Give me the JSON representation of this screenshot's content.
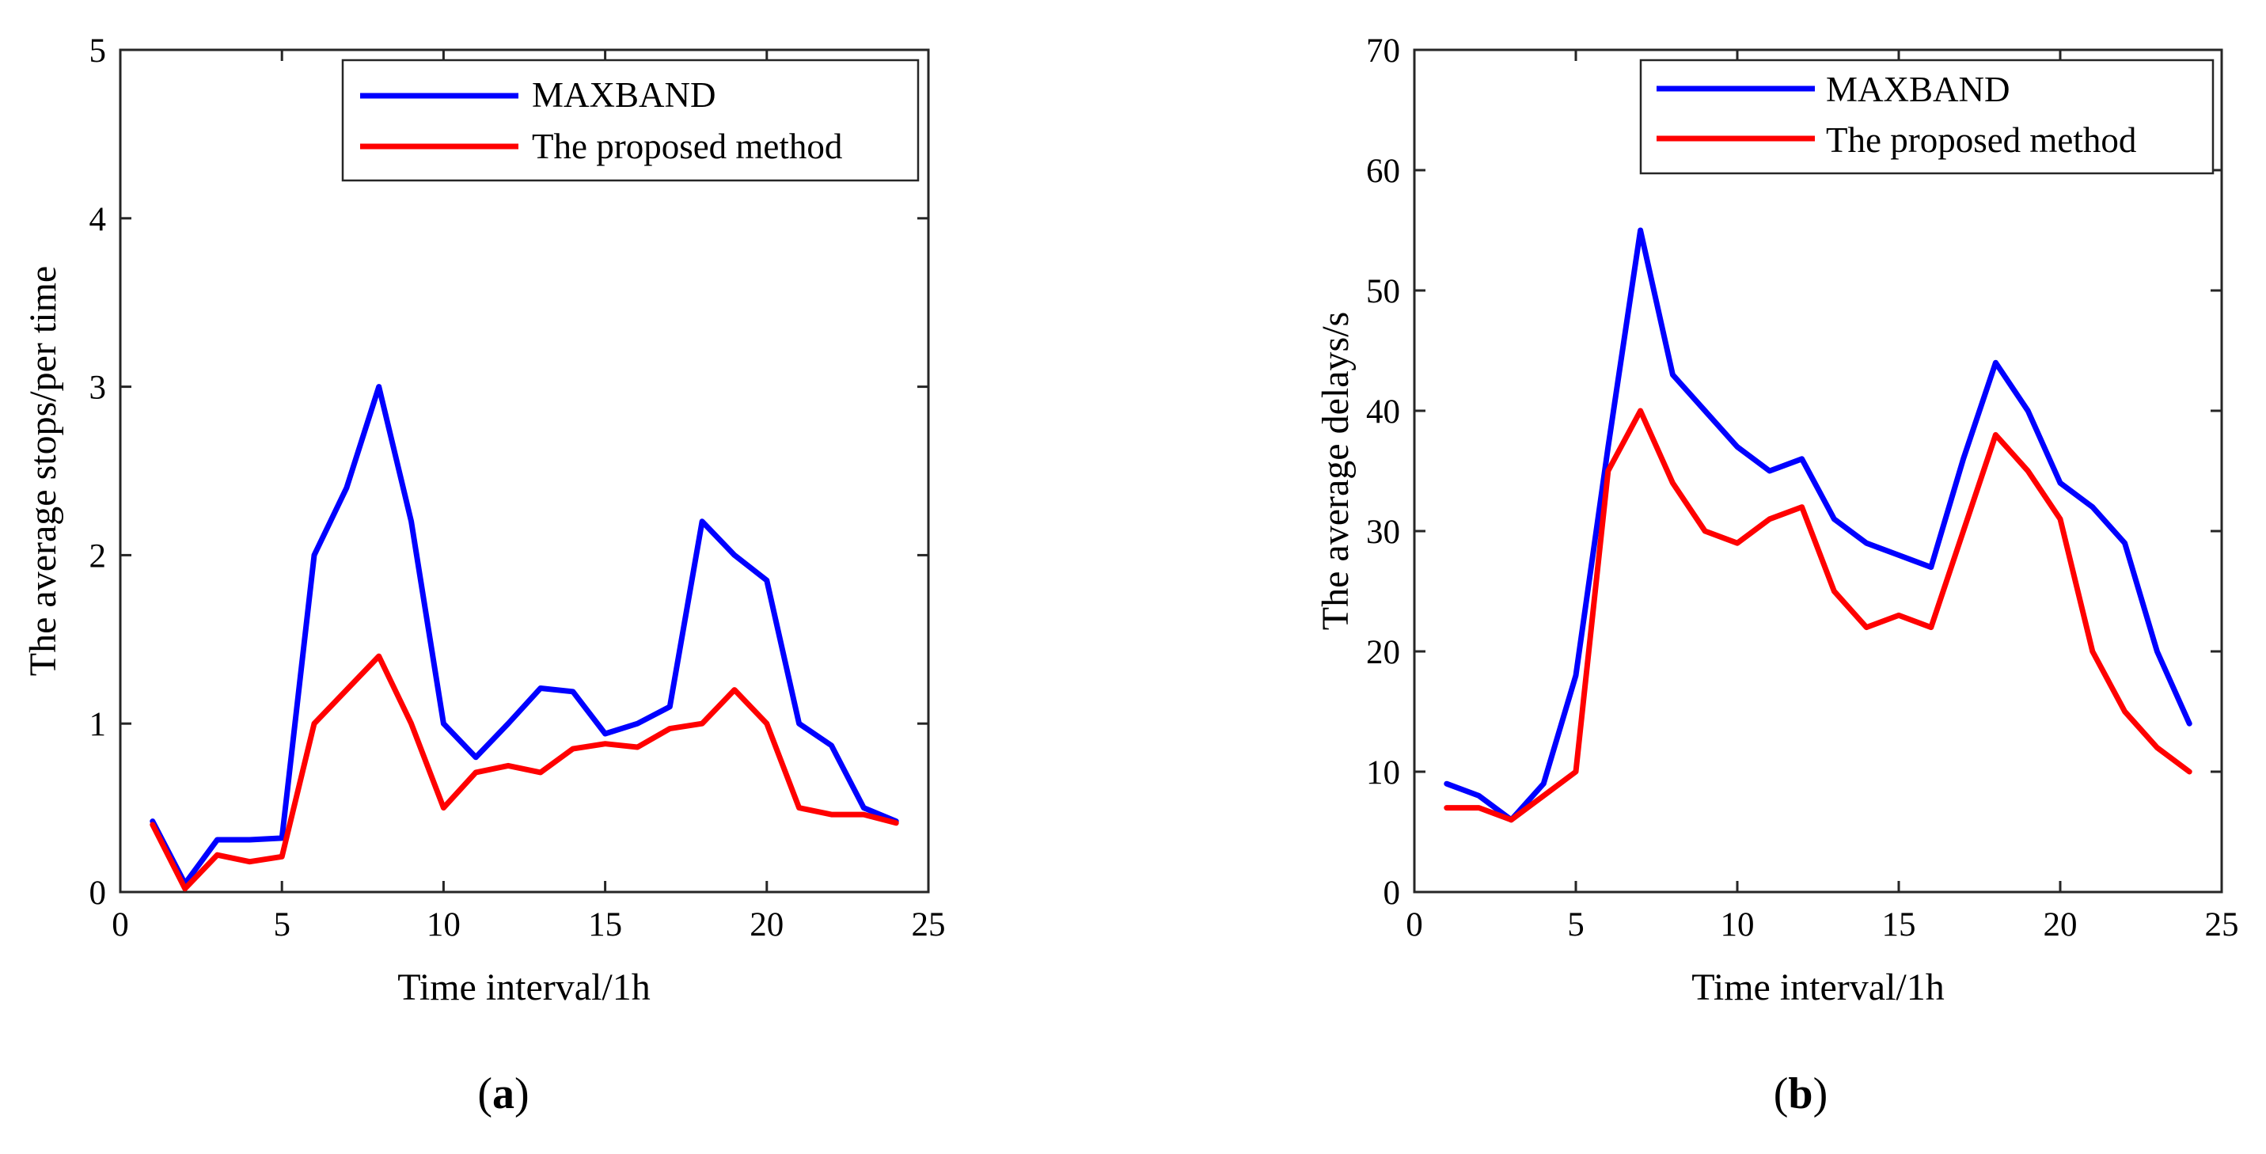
{
  "chart_data": [
    {
      "type": "line",
      "panel_label": "a",
      "title": "",
      "xlabel": "Time interval/1h",
      "ylabel": "The average stops/per time",
      "xlim": [
        0,
        25
      ],
      "ylim": [
        0,
        5
      ],
      "xticks": [
        0,
        5,
        10,
        15,
        20,
        25
      ],
      "yticks": [
        0,
        1,
        2,
        3,
        4,
        5
      ],
      "legend_position": "top-right",
      "x": [
        1,
        2,
        3,
        4,
        5,
        6,
        7,
        8,
        9,
        10,
        11,
        12,
        13,
        14,
        15,
        16,
        17,
        18,
        19,
        20,
        21,
        22,
        23,
        24
      ],
      "series": [
        {
          "name": "MAXBAND",
          "color": "#0000ff",
          "values": [
            0.42,
            0.05,
            0.31,
            0.31,
            0.32,
            2.0,
            2.4,
            3.0,
            2.2,
            1.0,
            0.8,
            1.0,
            1.21,
            1.19,
            0.94,
            1.0,
            1.1,
            2.2,
            2.0,
            1.85,
            1.0,
            0.87,
            0.5,
            0.42
          ]
        },
        {
          "name": "The proposed method",
          "color": "#ff0000",
          "values": [
            0.4,
            0.02,
            0.22,
            0.18,
            0.21,
            1.0,
            1.2,
            1.4,
            1.0,
            0.5,
            0.71,
            0.75,
            0.71,
            0.85,
            0.88,
            0.86,
            0.97,
            1.0,
            1.2,
            1.0,
            0.5,
            0.46,
            0.46,
            0.41
          ]
        }
      ]
    },
    {
      "type": "line",
      "panel_label": "b",
      "title": "",
      "xlabel": "Time interval/1h",
      "ylabel": "The average delays/s",
      "xlim": [
        0,
        25
      ],
      "ylim": [
        0,
        70
      ],
      "xticks": [
        0,
        5,
        10,
        15,
        20,
        25
      ],
      "yticks": [
        0,
        10,
        20,
        30,
        40,
        50,
        60,
        70
      ],
      "legend_position": "top-right",
      "x": [
        1,
        2,
        3,
        4,
        5,
        6,
        7,
        8,
        9,
        10,
        11,
        12,
        13,
        14,
        15,
        16,
        17,
        18,
        19,
        20,
        21,
        22,
        23,
        24
      ],
      "series": [
        {
          "name": "MAXBAND",
          "color": "#0000ff",
          "values": [
            9,
            8,
            6,
            9,
            18,
            37,
            55,
            43,
            40,
            37,
            35,
            36,
            31,
            29,
            28,
            27,
            36,
            44,
            40,
            34,
            32,
            29,
            20,
            14
          ]
        },
        {
          "name": "The proposed method",
          "color": "#ff0000",
          "values": [
            7,
            7,
            6,
            8,
            10,
            35,
            40,
            34,
            30,
            29,
            31,
            32,
            25,
            22,
            23,
            22,
            30,
            38,
            35,
            31,
            20,
            15,
            12,
            10
          ]
        }
      ]
    }
  ]
}
